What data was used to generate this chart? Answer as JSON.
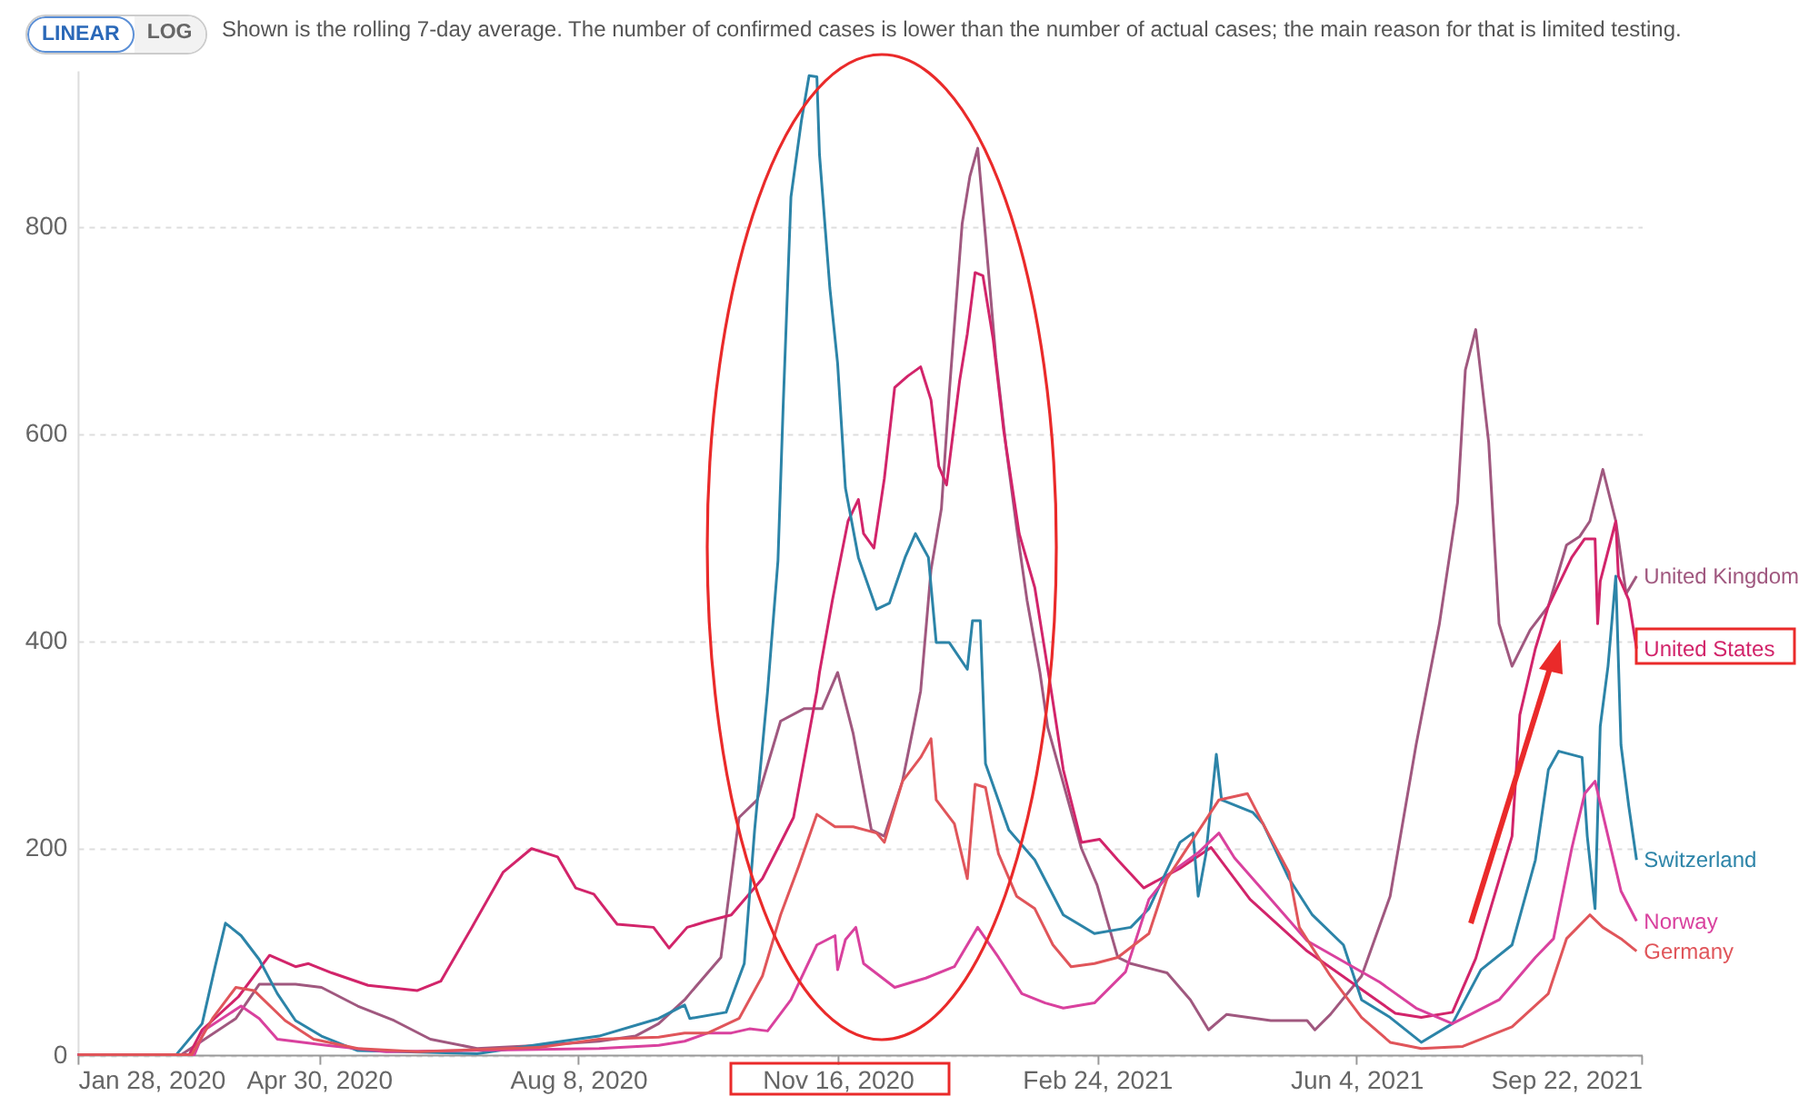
{
  "chart_data": {
    "type": "line",
    "subtitle": "Shown is the rolling 7-day average. The number of confirmed cases is lower than the number of actual cases; the main reason for that is limited testing.",
    "annotations": [
      "LINEAR",
      "LOG"
    ],
    "xlim": [
      "2020-01-28",
      "2021-09-22"
    ],
    "xticks": [
      {
        "value": "2020-01-28",
        "label": "Jan 28, 2020"
      },
      {
        "value": "2020-04-30",
        "label": "Apr 30, 2020"
      },
      {
        "value": "2020-08-08",
        "label": "Aug 8, 2020"
      },
      {
        "value": "2020-11-16",
        "label": "Nov 16, 2020"
      },
      {
        "value": "2021-02-24",
        "label": "Feb 24, 2021"
      },
      {
        "value": "2021-06-04",
        "label": "Jun 4, 2021"
      },
      {
        "value": "2021-09-22",
        "label": "Sep 22, 2021"
      }
    ],
    "ylim": [
      0,
      950
    ],
    "yticks": [
      0,
      200,
      400,
      600,
      800
    ],
    "grid": "y",
    "legend": false,
    "marker": "none",
    "line_style": "solid",
    "series": [
      {
        "name": "United Kingdom",
        "color": "#a0587f",
        "x": [
          "2020-01-28",
          "2020-03-08",
          "2020-03-29",
          "2020-04-07",
          "2020-04-21",
          "2020-05-01",
          "2020-05-15",
          "2020-05-29",
          "2020-06-12",
          "2020-06-30",
          "2020-07-24",
          "2020-08-16",
          "2020-08-30",
          "2020-09-08",
          "2020-09-18",
          "2020-09-20",
          "2020-10-02",
          "2020-10-09",
          "2020-10-16",
          "2020-10-25",
          "2020-11-03",
          "2020-11-10",
          "2020-11-16",
          "2020-11-22",
          "2020-11-29",
          "2020-12-04",
          "2020-12-11",
          "2020-12-18",
          "2020-12-22",
          "2020-12-26",
          "2020-12-29",
          "2021-01-03",
          "2021-01-06",
          "2021-01-09",
          "2021-01-12",
          "2021-01-16",
          "2021-01-20",
          "2021-01-24",
          "2021-01-28",
          "2021-02-02",
          "2021-02-05",
          "2021-02-18",
          "2021-02-24",
          "2021-02-28",
          "2021-03-04",
          "2021-03-09",
          "2021-03-23",
          "2021-04-01",
          "2021-04-08",
          "2021-04-15",
          "2021-05-02",
          "2021-05-16",
          "2021-05-19",
          "2021-05-25",
          "2021-06-06",
          "2021-06-17",
          "2021-06-27",
          "2021-07-06",
          "2021-07-13",
          "2021-07-16",
          "2021-07-20",
          "2021-07-25",
          "2021-07-29",
          "2021-08-03",
          "2021-08-10",
          "2021-08-17",
          "2021-08-24",
          "2021-08-29",
          "2021-09-02",
          "2021-09-07",
          "2021-09-12",
          "2021-09-16",
          "2021-09-20"
        ],
        "values": [
          0,
          0,
          35,
          68,
          68,
          65,
          47,
          33,
          15,
          6,
          9,
          13,
          18,
          30,
          53,
          59,
          94,
          229,
          246,
          322,
          334,
          334,
          369,
          310,
          217,
          211,
          264,
          351,
          468,
          527,
          638,
          802,
          848,
          875,
          790,
          673,
          585,
          509,
          439,
          369,
          316,
          199,
          164,
          129,
          94,
          88,
          79,
          53,
          24,
          39,
          33,
          33,
          24,
          39,
          76,
          153,
          299,
          416,
          533,
          661,
          700,
          591,
          416,
          375,
          410,
          433,
          492,
          500,
          515,
          565,
          515,
          445,
          462
        ]
      },
      {
        "name": "United States",
        "color": "#d2246a",
        "x": [
          "2020-01-28",
          "2020-03-11",
          "2020-03-16",
          "2020-03-30",
          "2020-04-11",
          "2020-04-21",
          "2020-04-26",
          "2020-05-05",
          "2020-05-19",
          "2020-06-07",
          "2020-06-16",
          "2020-06-28",
          "2020-07-10",
          "2020-07-21",
          "2020-07-31",
          "2020-08-07",
          "2020-08-14",
          "2020-08-23",
          "2020-09-06",
          "2020-09-12",
          "2020-09-19",
          "2020-09-27",
          "2020-10-06",
          "2020-10-18",
          "2020-10-30",
          "2020-11-08",
          "2020-11-09",
          "2020-11-14",
          "2020-11-20",
          "2020-11-24",
          "2020-11-26",
          "2020-11-30",
          "2020-12-04",
          "2020-12-08",
          "2020-12-13",
          "2020-12-18",
          "2020-12-22",
          "2020-12-25",
          "2020-12-28",
          "2021-01-02",
          "2021-01-05",
          "2021-01-08",
          "2021-01-11",
          "2021-01-15",
          "2021-01-19",
          "2021-01-25",
          "2021-01-31",
          "2021-02-06",
          "2021-02-11",
          "2021-02-18",
          "2021-02-25",
          "2021-03-04",
          "2021-03-14",
          "2021-03-28",
          "2021-04-09",
          "2021-04-24",
          "2021-05-16",
          "2021-06-02",
          "2021-06-19",
          "2021-06-29",
          "2021-07-11",
          "2021-07-20",
          "2021-08-03",
          "2021-08-06",
          "2021-08-12",
          "2021-08-17",
          "2021-08-26",
          "2021-08-31",
          "2021-09-04",
          "2021-09-05",
          "2021-09-06",
          "2021-09-12",
          "2021-09-13",
          "2021-09-17",
          "2021-09-20"
        ],
        "values": [
          0,
          0,
          24,
          56,
          96,
          85,
          88,
          79,
          67,
          62,
          71,
          123,
          176,
          199,
          191,
          161,
          155,
          126,
          123,
          103,
          123,
          129,
          135,
          170,
          229,
          351,
          369,
          439,
          515,
          536,
          503,
          489,
          556,
          644,
          655,
          664,
          632,
          568,
          550,
          650,
          696,
          755,
          752,
          690,
          603,
          503,
          451,
          357,
          275,
          205,
          208,
          188,
          161,
          180,
          200,
          150,
          100,
          70,
          40,
          36,
          41,
          93,
          211,
          328,
          392,
          433,
          480,
          498,
          498,
          416,
          457,
          515,
          462,
          439,
          392
        ]
      },
      {
        "name": "Switzerland",
        "color": "#2c84a8",
        "x": [
          "2020-01-28",
          "2020-03-06",
          "2020-03-16",
          "2020-03-21",
          "2020-03-25",
          "2020-03-31",
          "2020-04-07",
          "2020-04-14",
          "2020-04-21",
          "2020-05-01",
          "2020-05-15",
          "2020-06-30",
          "2020-07-24",
          "2020-08-16",
          "2020-09-08",
          "2020-09-18",
          "2020-09-20",
          "2020-10-04",
          "2020-10-11",
          "2020-10-15",
          "2020-10-20",
          "2020-10-24",
          "2020-10-26",
          "2020-10-29",
          "2020-11-02",
          "2020-11-05",
          "2020-11-08",
          "2020-11-09",
          "2020-11-13",
          "2020-11-16",
          "2020-11-19",
          "2020-11-24",
          "2020-12-01",
          "2020-12-06",
          "2020-12-12",
          "2020-12-16",
          "2020-12-21",
          "2020-12-24",
          "2020-12-29",
          "2021-01-05",
          "2021-01-07",
          "2021-01-10",
          "2021-01-11",
          "2021-01-12",
          "2021-01-21",
          "2021-01-31",
          "2021-02-11",
          "2021-02-23",
          "2021-03-09",
          "2021-03-16",
          "2021-03-28",
          "2021-04-02",
          "2021-04-04",
          "2021-04-07",
          "2021-04-11",
          "2021-04-13",
          "2021-04-25",
          "2021-04-29",
          "2021-05-09",
          "2021-05-18",
          "2021-05-30",
          "2021-06-06",
          "2021-06-17",
          "2021-06-29",
          "2021-07-11",
          "2021-07-22",
          "2021-08-03",
          "2021-08-12",
          "2021-08-17",
          "2021-08-21",
          "2021-08-30",
          "2021-09-01",
          "2021-09-04",
          "2021-09-06",
          "2021-09-09",
          "2021-09-12",
          "2021-09-14",
          "2021-09-17",
          "2021-09-20"
        ],
        "values": [
          0,
          0,
          30,
          85,
          127,
          115,
          92,
          59,
          33,
          18,
          4,
          1,
          10,
          18,
          35,
          48,
          35,
          41,
          88,
          217,
          351,
          477,
          626,
          828,
          901,
          945,
          944,
          869,
          740,
          667,
          547,
          480,
          430,
          436,
          480,
          503,
          480,
          398,
          398,
          372,
          419,
          419,
          351,
          281,
          217,
          188,
          135,
          117,
          123,
          141,
          205,
          214,
          153,
          194,
          290,
          246,
          234,
          223,
          170,
          135,
          106,
          53,
          36,
          12,
          30,
          82,
          106,
          188,
          275,
          293,
          287,
          211,
          141,
          317,
          375,
          462,
          299,
          240,
          188
        ]
      },
      {
        "name": "Norway",
        "color": "#d9419e",
        "x": [
          "2020-01-28",
          "2020-03-13",
          "2020-03-17",
          "2020-03-31",
          "2020-04-07",
          "2020-04-14",
          "2020-05-03",
          "2020-05-26",
          "2020-08-16",
          "2020-09-08",
          "2020-09-18",
          "2020-09-27",
          "2020-10-06",
          "2020-10-13",
          "2020-10-20",
          "2020-10-29",
          "2020-11-08",
          "2020-11-15",
          "2020-11-16",
          "2020-11-19",
          "2020-11-23",
          "2020-11-26",
          "2020-12-08",
          "2020-12-20",
          "2020-12-31",
          "2021-01-09",
          "2021-01-17",
          "2021-01-26",
          "2021-02-04",
          "2021-02-11",
          "2021-02-23",
          "2021-03-07",
          "2021-03-16",
          "2021-03-24",
          "2021-04-04",
          "2021-04-12",
          "2021-04-18",
          "2021-05-02",
          "2021-05-16",
          "2021-05-30",
          "2021-06-13",
          "2021-06-27",
          "2021-07-11",
          "2021-07-29",
          "2021-08-12",
          "2021-08-19",
          "2021-08-26",
          "2021-08-31",
          "2021-09-04",
          "2021-09-09",
          "2021-09-14",
          "2021-09-20"
        ],
        "values": [
          0,
          0,
          24,
          47,
          35,
          15,
          9,
          3,
          6,
          9,
          13,
          21,
          21,
          25,
          23,
          53,
          106,
          115,
          82,
          111,
          123,
          88,
          65,
          74,
          85,
          123,
          94,
          59,
          50,
          45,
          50,
          80,
          150,
          175,
          195,
          214,
          190,
          150,
          110,
          90,
          70,
          45,
          30,
          53,
          94,
          112,
          199,
          252,
          264,
          211,
          158,
          129
        ]
      },
      {
        "name": "Germany",
        "color": "#e0555a",
        "x": [
          "2020-01-28",
          "2020-03-12",
          "2020-03-20",
          "2020-03-29",
          "2020-04-05",
          "2020-04-17",
          "2020-04-28",
          "2020-05-15",
          "2020-06-07",
          "2020-07-24",
          "2020-08-16",
          "2020-09-08",
          "2020-09-18",
          "2020-09-27",
          "2020-10-09",
          "2020-10-18",
          "2020-10-25",
          "2020-11-01",
          "2020-11-08",
          "2020-11-15",
          "2020-11-22",
          "2020-12-01",
          "2020-12-04",
          "2020-12-11",
          "2020-12-18",
          "2020-12-22",
          "2020-12-24",
          "2020-12-31",
          "2021-01-05",
          "2021-01-08",
          "2021-01-12",
          "2021-01-17",
          "2021-01-24",
          "2021-01-31",
          "2021-02-07",
          "2021-02-14",
          "2021-02-23",
          "2021-03-04",
          "2021-03-16",
          "2021-03-23",
          "2021-04-12",
          "2021-04-23",
          "2021-04-29",
          "2021-05-09",
          "2021-05-13",
          "2021-05-25",
          "2021-06-06",
          "2021-06-17",
          "2021-06-29",
          "2021-07-15",
          "2021-08-03",
          "2021-08-17",
          "2021-08-24",
          "2021-09-02",
          "2021-09-07",
          "2021-09-14",
          "2021-09-20"
        ],
        "values": [
          0,
          0,
          35,
          65,
          62,
          33,
          15,
          6,
          3,
          7,
          15,
          17,
          21,
          21,
          35,
          76,
          135,
          182,
          232,
          220,
          220,
          214,
          205,
          264,
          287,
          305,
          246,
          223,
          170,
          261,
          258,
          194,
          153,
          141,
          106,
          85,
          88,
          94,
          117,
          170,
          246,
          252,
          223,
          176,
          123,
          76,
          36,
          12,
          6,
          8,
          27,
          59,
          112,
          135,
          123,
          112,
          100
        ]
      }
    ]
  }
}
